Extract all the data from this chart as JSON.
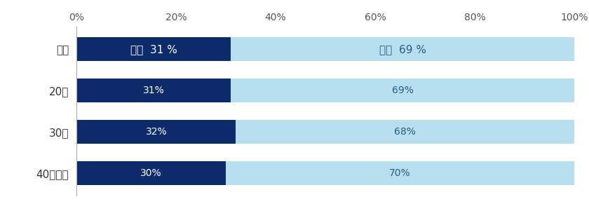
{
  "categories": [
    "全体",
    "20代",
    "30代",
    "40代以上"
  ],
  "values_yes": [
    31,
    31,
    32,
    30
  ],
  "values_no": [
    69,
    69,
    68,
    70
  ],
  "labels_yes": [
    "ある  31 %",
    "31%",
    "32%",
    "30%"
  ],
  "labels_no": [
    "ない  69 %",
    "69%",
    "68%",
    "70%"
  ],
  "color_yes": "#0d2a6b",
  "color_no": "#b8dff0",
  "text_color_yes": "#ffffff",
  "text_color_no": "#2a5a8a",
  "background_color": "#ffffff",
  "xticks": [
    0,
    20,
    40,
    60,
    80,
    100
  ],
  "xlim": [
    0,
    100
  ],
  "bar_height": 0.58,
  "label_yes_fontsize_0": 11,
  "label_yes_fontsize": 10,
  "label_no_fontsize_0": 11,
  "label_no_fontsize": 10,
  "ytick_fontsize": 11,
  "xtick_fontsize": 10
}
